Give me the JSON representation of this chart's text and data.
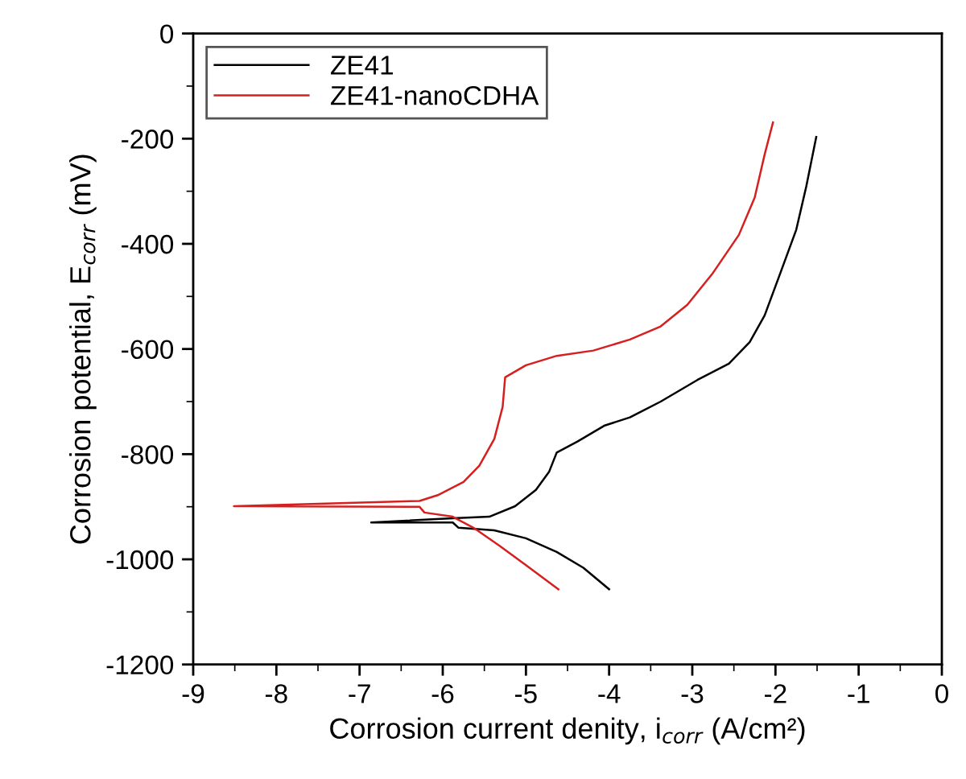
{
  "chart_data": {
    "type": "line",
    "xlabel": "Corrosion current denity, i$_{corr}$ (A/cm²)",
    "ylabel": "Corrosion potential, E$_{corr}$ (mV)",
    "xlim": [
      -9,
      0
    ],
    "xticks": [
      -9,
      -8,
      -7,
      -6,
      -5,
      -4,
      -3,
      -2,
      -1,
      0
    ],
    "ylim": [
      -1200,
      0
    ],
    "yticks": [
      -1200,
      -1000,
      -800,
      -600,
      -400,
      -200,
      0
    ],
    "legend": "top left",
    "grid": false,
    "marker": "none",
    "line_style": "solid",
    "series": [
      {
        "name": "ZE41",
        "color": "#000000",
        "x": [
          -4.0,
          -4.31,
          -4.63,
          -5.0,
          -5.38,
          -5.81,
          -5.88,
          -6.86,
          -5.88,
          -5.44,
          -5.13,
          -4.88,
          -4.72,
          -4.63,
          -4.38,
          -4.06,
          -3.75,
          -3.38,
          -2.94,
          -2.56,
          -2.31,
          -2.13,
          -1.94,
          -1.75,
          -1.63,
          -1.51
        ],
        "values": [
          -1057,
          -1016,
          -986,
          -960,
          -945,
          -940,
          -930,
          -930,
          -922,
          -919,
          -899,
          -868,
          -833,
          -797,
          -776,
          -746,
          -730,
          -700,
          -659,
          -628,
          -587,
          -536,
          -455,
          -373,
          -291,
          -197
        ]
      },
      {
        "name": "ZE41-nanoCDHA",
        "color": "#d62020",
        "x": [
          -4.61,
          -5.0,
          -5.31,
          -5.63,
          -5.88,
          -6.22,
          -6.28,
          -8.51,
          -6.28,
          -6.06,
          -5.75,
          -5.56,
          -5.38,
          -5.28,
          -5.25,
          -5.0,
          -4.63,
          -4.19,
          -3.75,
          -3.38,
          -3.06,
          -2.75,
          -2.44,
          -2.25,
          -2.13,
          -2.03
        ],
        "values": [
          -1057,
          -1011,
          -975,
          -940,
          -919,
          -911,
          -900,
          -899,
          -889,
          -878,
          -853,
          -822,
          -771,
          -710,
          -654,
          -631,
          -613,
          -603,
          -582,
          -557,
          -516,
          -455,
          -383,
          -312,
          -230,
          -169
        ]
      }
    ]
  }
}
